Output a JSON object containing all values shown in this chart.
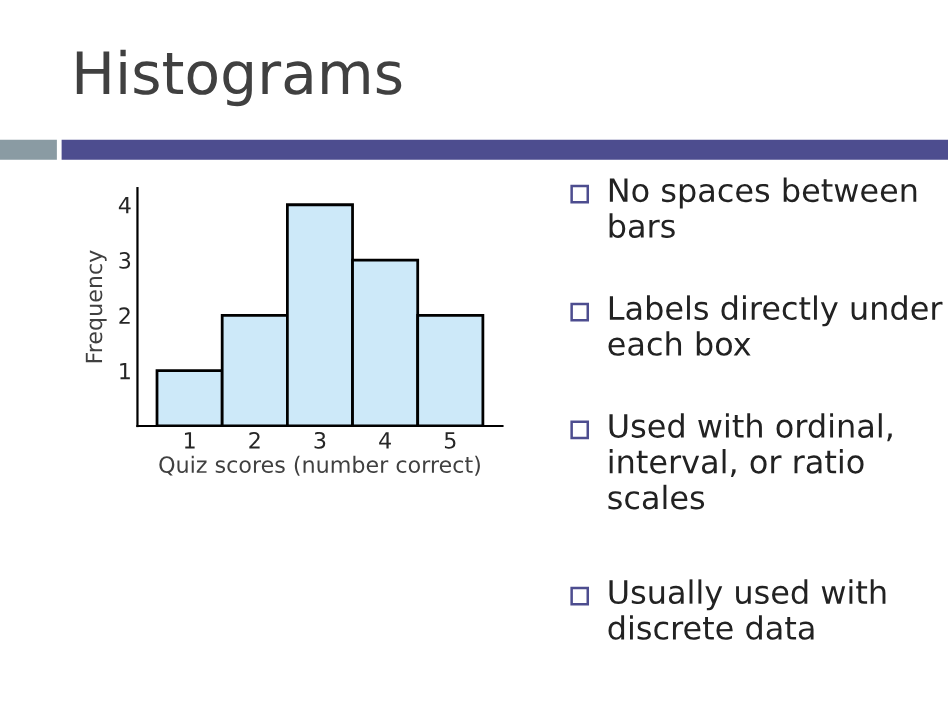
{
  "chart_data": {
    "type": "bar",
    "title": "Histograms",
    "xlabel": "Quiz scores (number correct)",
    "ylabel": "Frequency",
    "categories": [
      "1",
      "2",
      "3",
      "4",
      "5"
    ],
    "values": [
      1,
      2,
      4,
      3,
      2
    ],
    "color": "#cde9f9",
    "ylim": [
      0,
      4.3
    ],
    "yticks": [
      1,
      2,
      3,
      4
    ],
    "grid": false,
    "legend": false,
    "annotations": [
      "No spaces between\nbars",
      "Labels directly under\neach box",
      "Used with ordinal,\ninterval, or ratio\nscales",
      "Usually used with\ndiscrete data"
    ]
  }
}
